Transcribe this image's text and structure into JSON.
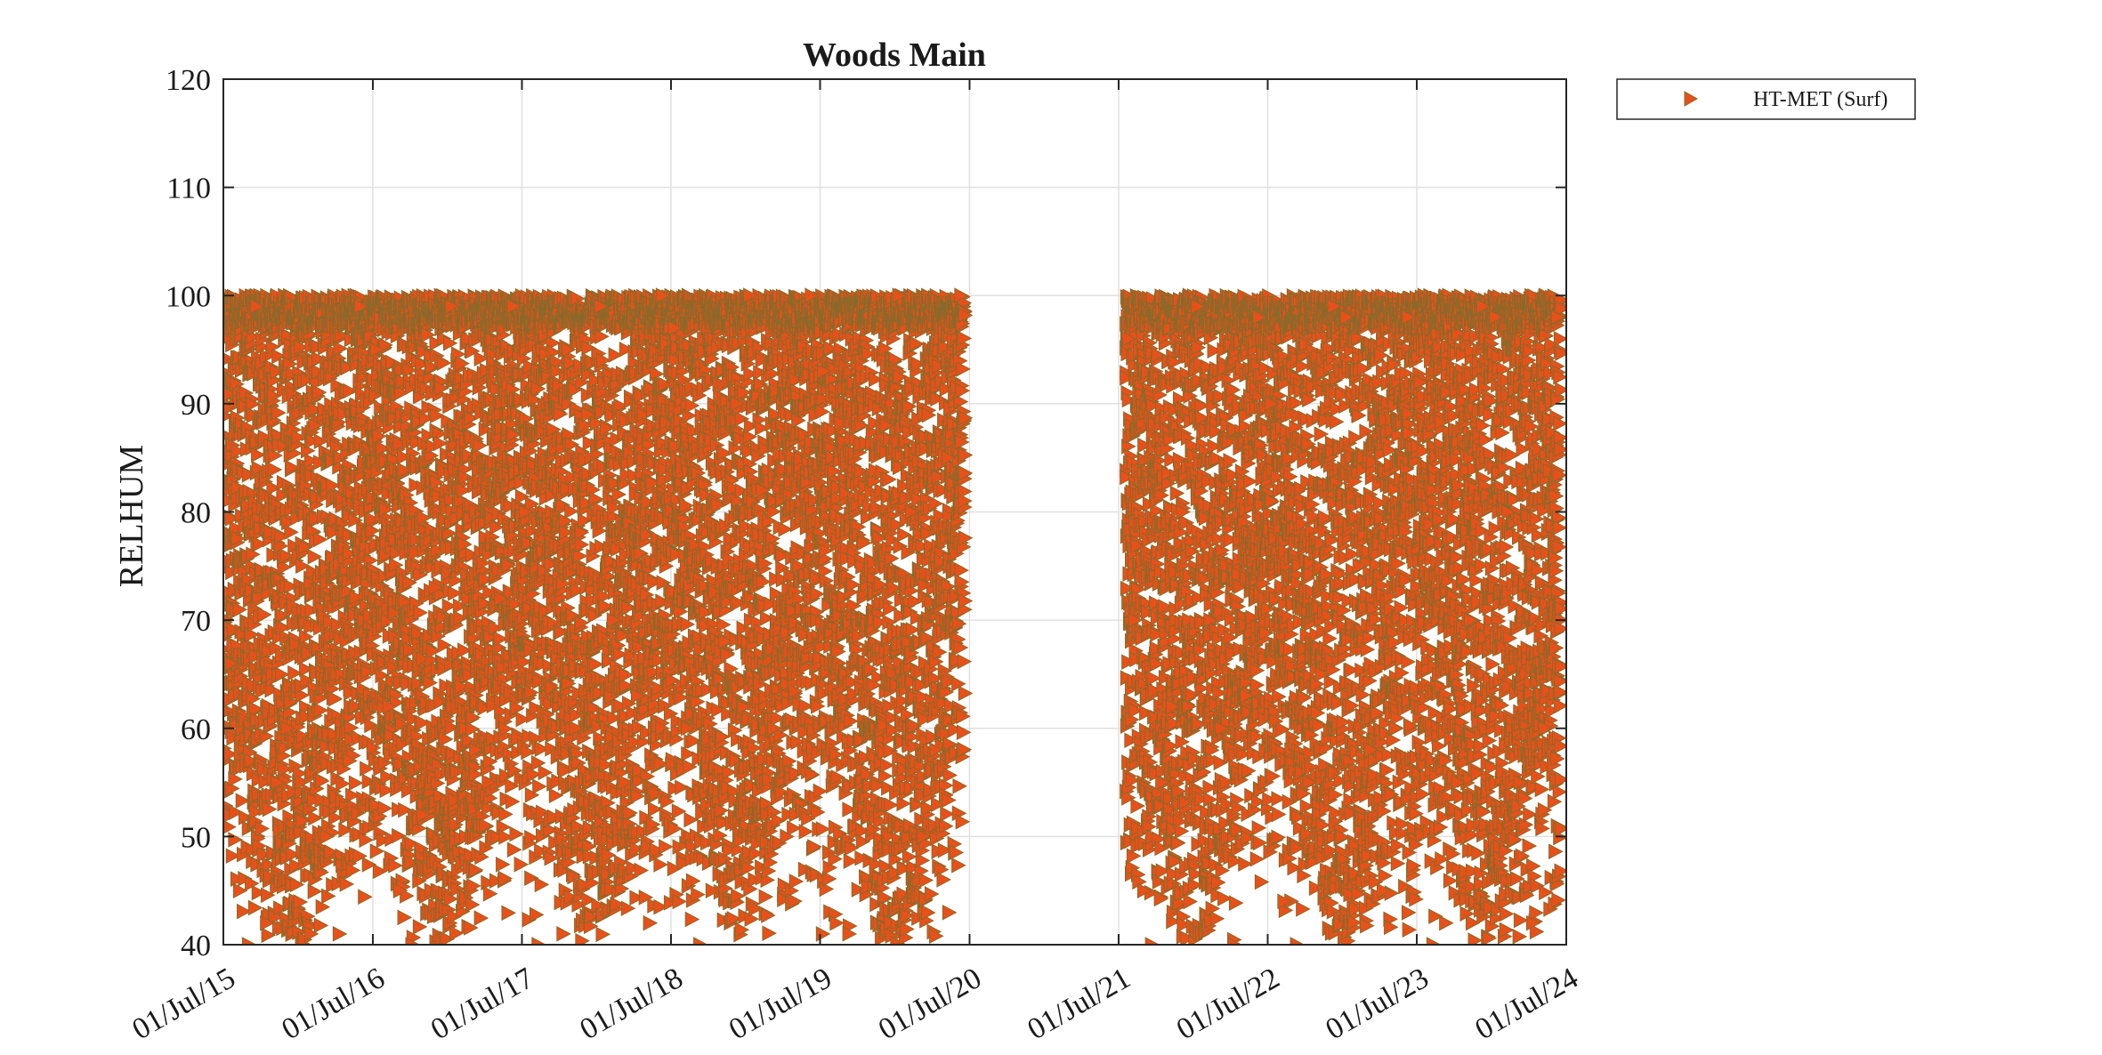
{
  "chart_data": {
    "type": "scatter",
    "title": "Woods Main",
    "xlabel": "",
    "ylabel": "RELHUM",
    "x_ticks": [
      "01/Jul/15",
      "01/Jul/16",
      "01/Jul/17",
      "01/Jul/18",
      "01/Jul/19",
      "01/Jul/20",
      "01/Jul/21",
      "01/Jul/22",
      "01/Jul/23",
      "01/Jul/24"
    ],
    "x_range": [
      "2015-07-01",
      "2024-07-01"
    ],
    "y_ticks": [
      40,
      50,
      60,
      70,
      80,
      90,
      100,
      110,
      120
    ],
    "ylim": [
      40,
      120
    ],
    "grid": true,
    "legend_position": "outside-top-right",
    "marker": "right-pointing-triangle",
    "series": [
      {
        "name": "HT-MET (Surf)",
        "color": "#e8501a",
        "edge_color": "#8a6a2a",
        "note_visible_coverage": "dense daily-cycle humidity observations",
        "segments": [
          {
            "start": "2015-07-01",
            "end": "2020-06-20",
            "points": [
              [
                "2015-07-05",
                96
              ],
              [
                "2015-07-20",
                66
              ],
              [
                "2015-08-10",
                45
              ],
              [
                "2015-09-01",
                40
              ],
              [
                "2015-09-20",
                99
              ],
              [
                "2015-10-15",
                42
              ],
              [
                "2015-11-10",
                55
              ],
              [
                "2015-12-05",
                60
              ],
              [
                "2016-01-10",
                75
              ],
              [
                "2016-02-10",
                88
              ],
              [
                "2016-03-10",
                50
              ],
              [
                "2016-04-10",
                41
              ],
              [
                "2016-05-05",
                57
              ],
              [
                "2016-06-01",
                99
              ],
              [
                "2016-07-10",
                95
              ],
              [
                "2016-08-10",
                62
              ],
              [
                "2016-09-05",
                45
              ],
              [
                "2016-10-05",
                40
              ],
              [
                "2016-11-01",
                52
              ],
              [
                "2016-12-01",
                73
              ],
              [
                "2017-01-10",
                99
              ],
              [
                "2017-02-10",
                77
              ],
              [
                "2017-03-10",
                58
              ],
              [
                "2017-04-10",
                55
              ],
              [
                "2017-05-10",
                72
              ],
              [
                "2017-06-10",
                99
              ],
              [
                "2017-07-10",
                80
              ],
              [
                "2017-08-10",
                40
              ],
              [
                "2017-09-10",
                48
              ],
              [
                "2017-10-10",
                41
              ],
              [
                "2017-11-10",
                60
              ],
              [
                "2017-12-10",
                89
              ],
              [
                "2018-01-10",
                99
              ],
              [
                "2018-02-10",
                70
              ],
              [
                "2018-03-10",
                55
              ],
              [
                "2018-04-10",
                63
              ],
              [
                "2018-05-10",
                42
              ],
              [
                "2018-06-10",
                100
              ],
              [
                "2018-07-10",
                97
              ],
              [
                "2018-08-10",
                60
              ],
              [
                "2018-09-10",
                40
              ],
              [
                "2018-10-10",
                45
              ],
              [
                "2018-11-10",
                68
              ],
              [
                "2018-12-10",
                90
              ],
              [
                "2019-01-10",
                100
              ],
              [
                "2019-02-10",
                82
              ],
              [
                "2019-03-10",
                60
              ],
              [
                "2019-04-10",
                50
              ],
              [
                "2019-05-10",
                75
              ],
              [
                "2019-06-10",
                100
              ],
              [
                "2019-07-10",
                93
              ],
              [
                "2019-08-10",
                42
              ],
              [
                "2019-09-10",
                41
              ],
              [
                "2019-10-10",
                48
              ],
              [
                "2019-11-10",
                64
              ],
              [
                "2019-12-10",
                88
              ],
              [
                "2020-01-10",
                100
              ],
              [
                "2020-02-10",
                80
              ],
              [
                "2020-03-10",
                50
              ],
              [
                "2020-04-10",
                58
              ],
              [
                "2020-05-10",
                85
              ],
              [
                "2020-06-10",
                100
              ]
            ]
          },
          {
            "start": "2021-07-20",
            "end": "2024-06-20",
            "points": [
              [
                "2021-07-25",
                96
              ],
              [
                "2021-08-10",
                70
              ],
              [
                "2021-09-01",
                45
              ],
              [
                "2021-09-20",
                40
              ],
              [
                "2021-10-15",
                55
              ],
              [
                "2021-11-10",
                62
              ],
              [
                "2021-12-05",
                80
              ],
              [
                "2022-01-10",
                99
              ],
              [
                "2022-02-10",
                70
              ],
              [
                "2022-03-10",
                60
              ],
              [
                "2022-04-10",
                40
              ],
              [
                "2022-05-10",
                63
              ],
              [
                "2022-06-10",
                98
              ],
              [
                "2022-07-10",
                90
              ],
              [
                "2022-08-10",
                44
              ],
              [
                "2022-09-10",
                40
              ],
              [
                "2022-10-10",
                55
              ],
              [
                "2022-11-10",
                65
              ],
              [
                "2022-12-10",
                99
              ],
              [
                "2023-01-10",
                98
              ],
              [
                "2023-02-10",
                75
              ],
              [
                "2023-03-10",
                58
              ],
              [
                "2023-04-10",
                45
              ],
              [
                "2023-05-10",
                60
              ],
              [
                "2023-06-10",
                98
              ],
              [
                "2023-07-10",
                92
              ],
              [
                "2023-08-10",
                40
              ],
              [
                "2023-09-10",
                42
              ],
              [
                "2023-10-10",
                55
              ],
              [
                "2023-11-10",
                70
              ],
              [
                "2023-12-10",
                99
              ],
              [
                "2024-01-10",
                98
              ],
              [
                "2024-02-10",
                80
              ],
              [
                "2024-03-10",
                55
              ],
              [
                "2024-04-10",
                42
              ],
              [
                "2024-05-10",
                60
              ],
              [
                "2024-06-10",
                98
              ]
            ]
          }
        ]
      }
    ]
  }
}
